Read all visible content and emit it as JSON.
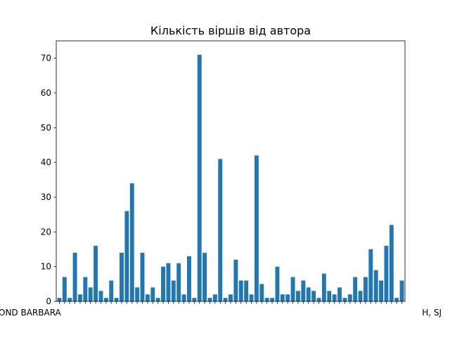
{
  "chart_data": {
    "type": "bar",
    "title": "Кількість віршів від автора",
    "xlabel": "",
    "ylabel": "",
    "ylim": [
      0,
      75
    ],
    "yticks": [
      0,
      10,
      20,
      30,
      40,
      50,
      60,
      70
    ],
    "grid": false,
    "bar_color": "#1f77b4",
    "x_tick_labels_visible": {
      "first": "OND BARBARA",
      "last": "H, SJ"
    },
    "values": [
      1,
      7,
      1,
      14,
      2,
      7,
      4,
      16,
      3,
      1,
      6,
      1,
      14,
      26,
      34,
      4,
      14,
      2,
      4,
      1,
      10,
      11,
      6,
      11,
      2,
      13,
      1,
      71,
      14,
      1,
      2,
      41,
      1,
      2,
      12,
      6,
      6,
      2,
      42,
      5,
      1,
      1,
      10,
      2,
      2,
      7,
      3,
      6,
      4,
      3,
      1,
      8,
      3,
      2,
      4,
      1,
      2,
      7,
      3,
      7,
      15,
      9,
      6,
      16,
      22,
      1,
      6
    ]
  }
}
